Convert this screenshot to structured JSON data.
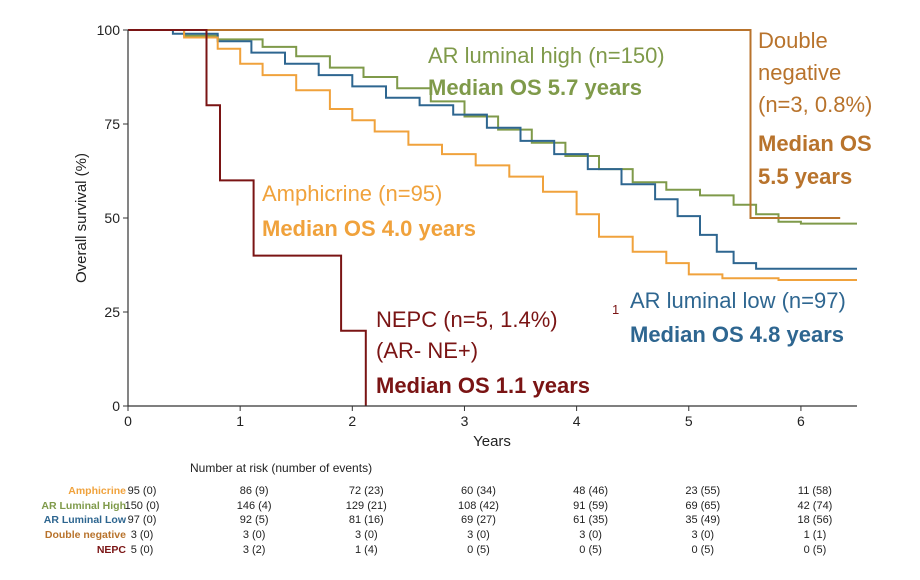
{
  "chart_data": {
    "type": "line",
    "subtype": "kaplan-meier",
    "xlabel": "Years",
    "ylabel": "Overall survival (%)",
    "xlim": [
      0,
      6.5
    ],
    "ylim": [
      0,
      100
    ],
    "xticks": [
      0,
      1,
      2,
      3,
      4,
      5,
      6
    ],
    "yticks": [
      0,
      25,
      50,
      75,
      100
    ],
    "series": [
      {
        "name": "AR luminal high (n=150)",
        "median_label": "Median OS 5.7 years",
        "color": "#7f9a4a",
        "points": [
          [
            0,
            100
          ],
          [
            0.5,
            98.5
          ],
          [
            0.8,
            97.5
          ],
          [
            1.2,
            95.5
          ],
          [
            1.5,
            93
          ],
          [
            1.8,
            90
          ],
          [
            2.1,
            87.5
          ],
          [
            2.4,
            84.5
          ],
          [
            2.7,
            81
          ],
          [
            3,
            77
          ],
          [
            3.3,
            73.5
          ],
          [
            3.6,
            70
          ],
          [
            3.9,
            66.5
          ],
          [
            4.2,
            63
          ],
          [
            4.5,
            59.5
          ],
          [
            4.8,
            57.5
          ],
          [
            5.1,
            56
          ],
          [
            5.4,
            53.5
          ],
          [
            5.6,
            51
          ],
          [
            5.8,
            49
          ],
          [
            6.0,
            48.5
          ],
          [
            6.5,
            48.5
          ]
        ]
      },
      {
        "name": "AR luminal low (n=97)",
        "median_label": "Median OS 4.8 years",
        "color": "#2e6690",
        "points": [
          [
            0,
            100
          ],
          [
            0.4,
            99
          ],
          [
            0.8,
            97
          ],
          [
            1.1,
            94
          ],
          [
            1.4,
            91
          ],
          [
            1.7,
            88
          ],
          [
            2.0,
            85
          ],
          [
            2.3,
            82
          ],
          [
            2.6,
            80
          ],
          [
            2.9,
            77.5
          ],
          [
            3.2,
            74
          ],
          [
            3.5,
            70.5
          ],
          [
            3.8,
            67
          ],
          [
            4.1,
            63
          ],
          [
            4.4,
            59
          ],
          [
            4.7,
            55
          ],
          [
            4.9,
            50.5
          ],
          [
            5.1,
            45.5
          ],
          [
            5.25,
            41
          ],
          [
            5.4,
            38
          ],
          [
            5.6,
            36.5
          ],
          [
            6.5,
            36.5
          ]
        ]
      },
      {
        "name": "Amphicrine (n=95)",
        "median_label": "Median OS 4.0 years",
        "color": "#f0a23c",
        "points": [
          [
            0,
            100
          ],
          [
            0.5,
            98
          ],
          [
            0.8,
            95
          ],
          [
            1.0,
            91
          ],
          [
            1.2,
            88
          ],
          [
            1.5,
            84
          ],
          [
            1.8,
            79
          ],
          [
            2.0,
            76
          ],
          [
            2.2,
            73
          ],
          [
            2.5,
            69.5
          ],
          [
            2.8,
            67
          ],
          [
            3.1,
            64
          ],
          [
            3.4,
            61
          ],
          [
            3.7,
            57
          ],
          [
            4.0,
            51
          ],
          [
            4.2,
            45
          ],
          [
            4.5,
            41
          ],
          [
            4.8,
            38
          ],
          [
            5.0,
            35
          ],
          [
            5.3,
            34
          ],
          [
            5.8,
            33.5
          ],
          [
            6.5,
            33.5
          ]
        ]
      },
      {
        "name": "Double negative",
        "median_label": "Median OS",
        "color": "#b8732c",
        "points": [
          [
            0,
            100
          ],
          [
            5.55,
            100
          ],
          [
            5.55,
            50
          ],
          [
            6.35,
            50
          ]
        ]
      },
      {
        "name": "NEPC (n=5, 1.4%)",
        "median_label": "Median OS 1.1 years",
        "color": "#7a1414",
        "points": [
          [
            0,
            100
          ],
          [
            0.7,
            100
          ],
          [
            0.7,
            80
          ],
          [
            0.82,
            80
          ],
          [
            0.82,
            60
          ],
          [
            1.12,
            60
          ],
          [
            1.12,
            40
          ],
          [
            1.9,
            40
          ],
          [
            1.9,
            20
          ],
          [
            2.12,
            20
          ],
          [
            2.12,
            0
          ]
        ]
      }
    ],
    "annotations": {
      "ar_high": {
        "name": "AR luminal high (n=150)",
        "median": "Median OS 5.7 years"
      },
      "dn": {
        "l1": "Double",
        "l2": "negative",
        "l3": "(n=3, 0.8%)",
        "l4": "Median OS",
        "l5": "5.5 years"
      },
      "amph": {
        "name": "Amphicrine (n=95)",
        "median": "Median OS 4.0 years"
      },
      "ar_low": {
        "name": "AR luminal low (n=97)",
        "median": "Median OS 4.8 years"
      },
      "nepc": {
        "name": "NEPC (n=5, 1.4%)",
        "sup": "1",
        "sub": "(AR-  NE+)",
        "median": "Median OS 1.1 years"
      }
    },
    "risk_table": {
      "title": "Number at risk (number of events)",
      "rows": [
        {
          "label": "Amphicrine",
          "color": "#f0a23c",
          "values": [
            "95 (0)",
            "86 (9)",
            "72 (23)",
            "60 (34)",
            "48 (46)",
            "23 (55)",
            "11 (58)"
          ]
        },
        {
          "label": "AR Luminal High",
          "color": "#7f9a4a",
          "values": [
            "150 (0)",
            "146 (4)",
            "129 (21)",
            "108 (42)",
            "91 (59)",
            "69 (65)",
            "42 (74)"
          ]
        },
        {
          "label": "AR Luminal Low",
          "color": "#2e6690",
          "values": [
            "97 (0)",
            "92 (5)",
            "81 (16)",
            "69 (27)",
            "61 (35)",
            "35 (49)",
            "18 (56)"
          ]
        },
        {
          "label": "Double negative",
          "color": "#b8732c",
          "values": [
            "3 (0)",
            "3 (0)",
            "3 (0)",
            "3 (0)",
            "3 (0)",
            "3 (0)",
            "1 (1)"
          ]
        },
        {
          "label": "NEPC",
          "color": "#7a1414",
          "values": [
            "5 (0)",
            "3 (2)",
            "1 (4)",
            "0 (5)",
            "0 (5)",
            "0 (5)",
            "0 (5)"
          ]
        }
      ]
    }
  }
}
